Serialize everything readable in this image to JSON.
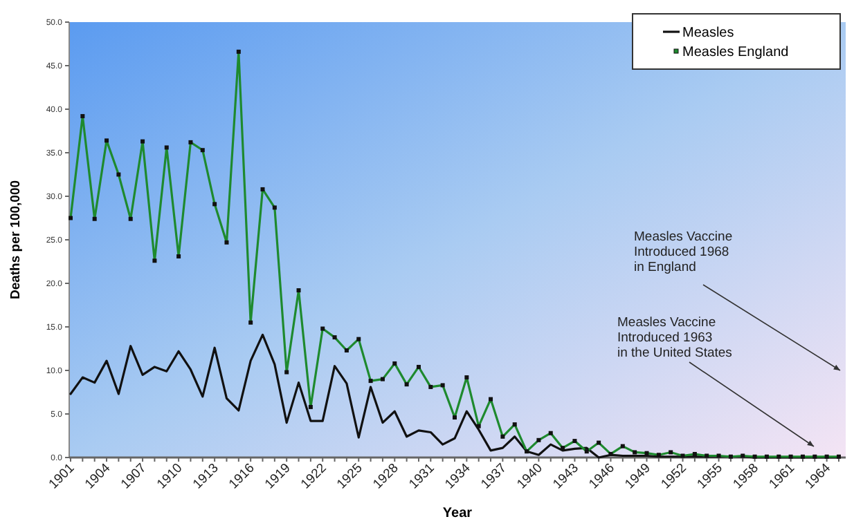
{
  "chart_data": {
    "type": "line",
    "xlabel": "Year",
    "ylabel": "Deaths per 100,000",
    "categories": [
      "1901",
      null,
      null,
      "1904",
      null,
      null,
      "1907",
      null,
      null,
      "1910",
      null,
      null,
      "1913",
      null,
      null,
      "1916",
      null,
      null,
      "1919",
      null,
      null,
      "1922",
      null,
      null,
      "1925",
      null,
      null,
      "1928",
      null,
      null,
      "1931",
      null,
      null,
      "1934",
      null,
      null,
      "1937",
      null,
      null,
      "1940",
      null,
      null,
      "1943",
      null,
      null,
      "1946",
      null,
      null,
      "1949",
      null,
      null,
      "1952",
      null,
      null,
      "1955",
      null,
      null,
      "1958",
      null,
      null,
      "1961",
      null,
      null,
      "1964",
      null
    ],
    "series": [
      {
        "name": "Measles",
        "color": "#111111",
        "marker": "none",
        "values": [
          7.3,
          9.2,
          8.6,
          11.1,
          7.3,
          12.8,
          9.5,
          10.4,
          9.9,
          12.2,
          10.1,
          7.0,
          12.6,
          6.8,
          5.4,
          11.1,
          14.1,
          10.7,
          4.0,
          8.6,
          4.2,
          4.2,
          10.5,
          8.5,
          2.3,
          8.1,
          4.0,
          5.3,
          2.4,
          3.1,
          2.9,
          1.5,
          2.2,
          5.3,
          3.2,
          0.8,
          1.1,
          2.4,
          0.7,
          0.3,
          1.5,
          0.8,
          1.0,
          1.1,
          0.0,
          0.3,
          0.2,
          0.2,
          0.2,
          0.1,
          0.1,
          0.1,
          0.1,
          0.1,
          0.1,
          0.1,
          0.1,
          0.0,
          0.0,
          0.0,
          0.0,
          0.0,
          0.0,
          0.0,
          0.0
        ]
      },
      {
        "name": "Measles England",
        "color": "#1e8a2e",
        "marker": "square",
        "values": [
          27.5,
          39.2,
          27.4,
          36.4,
          32.5,
          27.4,
          36.3,
          22.6,
          35.6,
          23.1,
          36.2,
          35.3,
          29.1,
          24.7,
          46.6,
          15.5,
          30.8,
          28.7,
          9.8,
          19.2,
          5.8,
          14.8,
          13.8,
          12.3,
          13.6,
          8.8,
          9.0,
          10.8,
          8.4,
          10.4,
          8.1,
          8.3,
          4.6,
          9.2,
          3.6,
          6.7,
          2.4,
          3.8,
          0.7,
          2.0,
          2.8,
          1.1,
          1.9,
          0.7,
          1.7,
          0.4,
          1.3,
          0.6,
          0.5,
          0.3,
          0.6,
          0.2,
          0.4,
          0.2,
          0.2,
          0.1,
          0.2,
          0.1,
          0.1,
          0.1,
          0.1,
          0.1,
          0.1,
          0.1,
          0.1
        ]
      }
    ],
    "ylim": [
      0,
      50
    ],
    "yticks": [
      {
        "value": 0,
        "label": "0.0"
      },
      {
        "value": 5,
        "label": "5.0"
      },
      {
        "value": 10,
        "label": "10.0"
      },
      {
        "value": 15,
        "label": "15.0"
      },
      {
        "value": 20,
        "label": "20.0"
      },
      {
        "value": 25,
        "label": "25.0"
      },
      {
        "value": 30,
        "label": "30.0"
      },
      {
        "value": 35,
        "label": "35.0"
      },
      {
        "value": 40,
        "label": "40.0"
      },
      {
        "value": 45,
        "label": "45.0"
      },
      {
        "value": 50,
        "label": "50.0"
      }
    ],
    "legend": "top right",
    "annotations": [
      "Measles Vaccine\nIntroduced 1968\nin England",
      "Measles Vaccine\nIntroduced 1963\nin the United States"
    ]
  }
}
